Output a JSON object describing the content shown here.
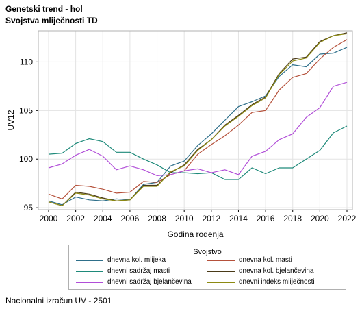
{
  "header": {
    "title": "Genetski trend - hol",
    "subtitle": "Svojstva mliječnosti TD"
  },
  "footnote": "Nacionalni izračun UV - 2501",
  "chart_data": {
    "type": "line",
    "xlabel": "Godina rođenja",
    "ylabel": "UV12",
    "xlim": [
      2000,
      2022
    ],
    "ylim": [
      94.8,
      113.2
    ],
    "x_ticks": [
      "2000",
      "2002",
      "2004",
      "2006",
      "2008",
      "2010",
      "2012",
      "2014",
      "2016",
      "2018",
      "2020",
      "2022"
    ],
    "y_ticks": [
      "95",
      "100",
      "105",
      "110"
    ],
    "grid": true,
    "legend_title": "Svojstvo",
    "legend_position": "bottom",
    "x": [
      2000,
      2001,
      2002,
      2003,
      2004,
      2005,
      2006,
      2007,
      2008,
      2009,
      2010,
      2011,
      2012,
      2013,
      2014,
      2015,
      2016,
      2017,
      2018,
      2019,
      2020,
      2021,
      2022
    ],
    "series": [
      {
        "name": "dnevna kol. mlijeka",
        "color": "#2e6f8a",
        "values": [
          95.7,
          95.3,
          96.1,
          95.8,
          95.7,
          95.9,
          95.8,
          97.4,
          97.6,
          99.3,
          99.8,
          101.4,
          102.6,
          104.0,
          105.4,
          105.9,
          106.5,
          108.5,
          109.7,
          109.5,
          110.8,
          110.9,
          111.5
        ]
      },
      {
        "name": "dnevna kol. masti",
        "color": "#b5513b",
        "values": [
          96.4,
          95.9,
          97.3,
          97.2,
          96.9,
          96.5,
          96.6,
          97.7,
          97.6,
          98.4,
          98.8,
          100.5,
          101.5,
          102.4,
          103.5,
          104.8,
          105.0,
          107.1,
          108.4,
          108.8,
          110.3,
          111.5,
          112.3
        ]
      },
      {
        "name": "dnevni sadržaj masti",
        "color": "#1e8a7a",
        "values": [
          100.5,
          100.6,
          101.6,
          102.1,
          101.8,
          100.7,
          100.7,
          100.0,
          99.4,
          98.6,
          98.6,
          98.5,
          98.6,
          97.9,
          97.9,
          99.1,
          98.5,
          99.1,
          99.1,
          100.0,
          100.9,
          102.7,
          103.4
        ]
      },
      {
        "name": "dnevna kol. bjelančevina",
        "color": "#4a3a18",
        "values": [
          95.6,
          95.2,
          96.6,
          96.4,
          96.0,
          95.7,
          95.8,
          97.3,
          97.3,
          98.6,
          99.4,
          101.0,
          102.0,
          103.5,
          104.5,
          105.6,
          106.4,
          108.8,
          110.3,
          110.5,
          112.1,
          112.7,
          113.0
        ]
      },
      {
        "name": "dnevni sadržaj bjelančevina",
        "color": "#b14ed8",
        "values": [
          99.1,
          99.5,
          100.4,
          101.0,
          100.3,
          98.9,
          99.3,
          98.9,
          98.3,
          98.4,
          98.8,
          99.0,
          98.6,
          98.9,
          98.4,
          100.3,
          100.8,
          102.0,
          102.6,
          104.3,
          105.3,
          107.5,
          107.9
        ]
      },
      {
        "name": "dnevni indeks mliječnosti",
        "color": "#8d8a12",
        "values": [
          95.6,
          95.2,
          96.5,
          96.3,
          95.9,
          95.7,
          95.8,
          97.2,
          97.2,
          98.7,
          99.3,
          100.9,
          102.0,
          103.4,
          104.4,
          105.5,
          106.3,
          108.7,
          110.1,
          110.4,
          112.0,
          112.7,
          112.9
        ]
      }
    ]
  }
}
